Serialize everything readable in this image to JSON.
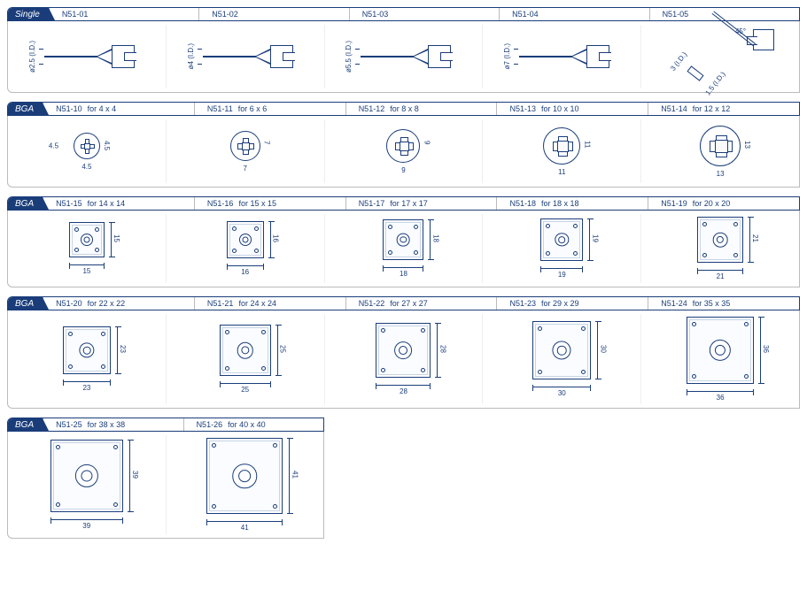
{
  "colors": {
    "brand": "#1a3d7a",
    "border_light": "#bbbbbb",
    "border_faint": "#eeeeee",
    "bg": "#ffffff"
  },
  "rows": [
    {
      "category": "Single",
      "items": [
        {
          "code": "N51-01",
          "desc": "",
          "type": "single",
          "diameter": "ø2.5",
          "id_label": "(I.D.)"
        },
        {
          "code": "N51-02",
          "desc": "",
          "type": "single",
          "diameter": "ø4",
          "id_label": "(I.D.)"
        },
        {
          "code": "N51-03",
          "desc": "",
          "type": "single",
          "diameter": "ø5.5",
          "id_label": "(I.D.)"
        },
        {
          "code": "N51-04",
          "desc": "",
          "type": "single",
          "diameter": "ø7",
          "id_label": "(I.D.)"
        },
        {
          "code": "N51-05",
          "desc": "",
          "type": "single_angle",
          "angle": "45°",
          "dim1": "3 (I.D.)",
          "dim2": "1.5 (I.D.)"
        }
      ]
    },
    {
      "category": "BGA",
      "items": [
        {
          "code": "N51-10",
          "desc": "for 4 x 4",
          "type": "bga_round",
          "outer_d": 30,
          "inner": 5,
          "dim_v": "4.5",
          "dim_h": "4.5",
          "extra_dims": [
            "4.5"
          ]
        },
        {
          "code": "N51-11",
          "desc": "for 6 x 6",
          "type": "bga_round",
          "outer_d": 34,
          "inner": 7,
          "dim_v": "7",
          "dim_h": "7"
        },
        {
          "code": "N51-12",
          "desc": "for 8 x 8",
          "type": "bga_round",
          "outer_d": 38,
          "inner": 9,
          "dim_v": "9",
          "dim_h": "9"
        },
        {
          "code": "N51-13",
          "desc": "for 10 x 10",
          "type": "bga_round",
          "outer_d": 42,
          "inner": 11,
          "dim_v": "11",
          "dim_h": "11"
        },
        {
          "code": "N51-14",
          "desc": "for 12 x 12",
          "type": "bga_round",
          "outer_d": 46,
          "inner": 13,
          "dim_v": "13",
          "dim_h": "13"
        }
      ]
    },
    {
      "category": "BGA",
      "items": [
        {
          "code": "N51-15",
          "desc": "for 14 x 14",
          "type": "bga_square",
          "size": 40,
          "dim_v": "15",
          "dim_h": "15"
        },
        {
          "code": "N51-16",
          "desc": "for 15 x 15",
          "type": "bga_square",
          "size": 42,
          "dim_v": "16",
          "dim_h": "16"
        },
        {
          "code": "N51-17",
          "desc": "for 17 x 17",
          "type": "bga_square",
          "size": 46,
          "dim_v": "18",
          "dim_h": "18"
        },
        {
          "code": "N51-18",
          "desc": "for 18 x 18",
          "type": "bga_square",
          "size": 48,
          "dim_v": "19",
          "dim_h": "19"
        },
        {
          "code": "N51-19",
          "desc": "for 20 x 20",
          "type": "bga_square",
          "size": 52,
          "dim_v": "21",
          "dim_h": "21"
        }
      ]
    },
    {
      "category": "BGA",
      "items": [
        {
          "code": "N51-20",
          "desc": "for 22 x 22",
          "type": "bga_square",
          "size": 54,
          "dim_v": "23",
          "dim_h": "23"
        },
        {
          "code": "N51-21",
          "desc": "for 24 x 24",
          "type": "bga_square",
          "size": 58,
          "dim_v": "25",
          "dim_h": "25"
        },
        {
          "code": "N51-22",
          "desc": "for 27 x 27",
          "type": "bga_square",
          "size": 62,
          "dim_v": "28",
          "dim_h": "28"
        },
        {
          "code": "N51-23",
          "desc": "for 29 x 29",
          "type": "bga_square",
          "size": 66,
          "dim_v": "30",
          "dim_h": "30"
        },
        {
          "code": "N51-24",
          "desc": "for 35 x 35",
          "type": "bga_square",
          "size": 76,
          "dim_v": "36",
          "dim_h": "36"
        }
      ]
    },
    {
      "category": "BGA",
      "partial": 2,
      "items": [
        {
          "code": "N51-25",
          "desc": "for 38 x 38",
          "type": "bga_square",
          "size": 82,
          "dim_v": "39",
          "dim_h": "39"
        },
        {
          "code": "N51-26",
          "desc": "for 40 x 40",
          "type": "bga_square",
          "size": 86,
          "dim_v": "41",
          "dim_h": "41"
        }
      ]
    }
  ]
}
